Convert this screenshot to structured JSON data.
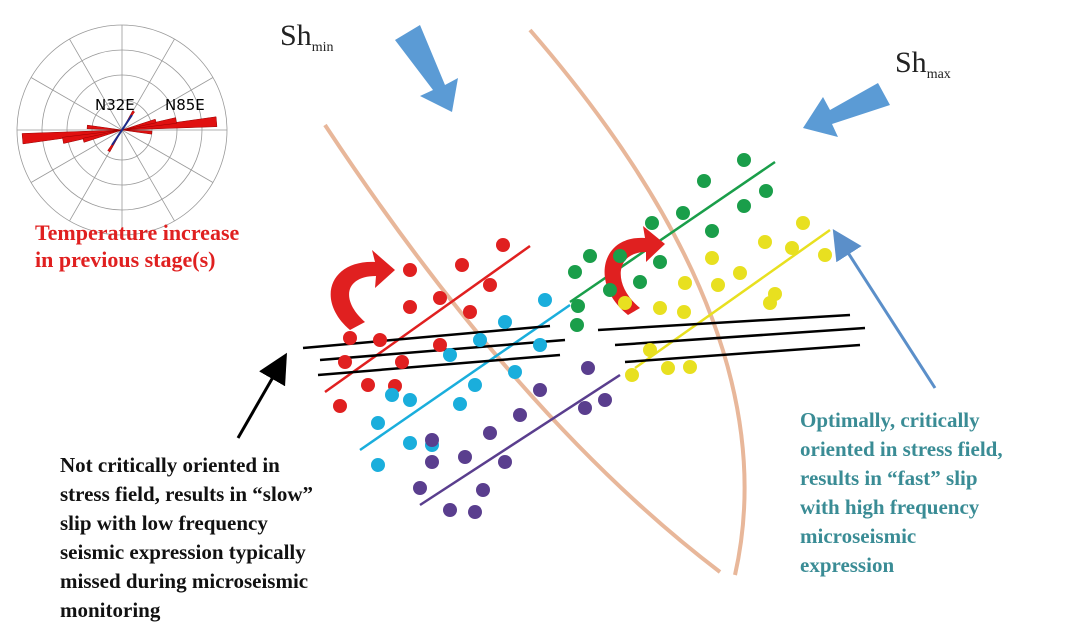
{
  "stress_labels": {
    "minimum": {
      "base": "Sh",
      "sub": "min"
    },
    "maximum": {
      "base": "Sh",
      "sub": "max"
    }
  },
  "rose_diagram": {
    "labels": [
      "N32E",
      "N85E"
    ]
  },
  "annotations": {
    "temperature": [
      "Temperature increase",
      "in previous stage(s)"
    ],
    "not_critical": [
      "Not critically  oriented in",
      "stress field, results in “slow”",
      "slip with low frequency",
      "seismic expression typically",
      "missed during  microseismic",
      "monitoring"
    ],
    "optimal": [
      "Optimally, critically",
      "oriented in stress field,",
      "results in “fast” slip",
      "with high frequency",
      "microseismic",
      "expression"
    ]
  }
}
